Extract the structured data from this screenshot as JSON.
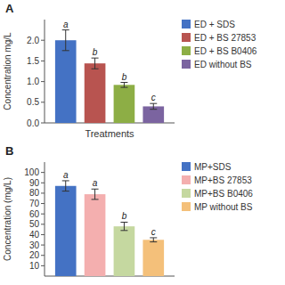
{
  "chart_data": [
    {
      "type": "bar",
      "title": "A",
      "xlabel": "Treatments",
      "ylabel": "Concentration mg/L",
      "categories": [
        null
      ],
      "series": [
        {
          "name": "ED + SDS",
          "color": "#4472C4",
          "values": [
            2.0
          ],
          "errors": [
            0.25
          ],
          "annotations": [
            "a"
          ]
        },
        {
          "name": "ED + BS 27853",
          "color": "#B85450",
          "values": [
            1.44
          ],
          "errors": [
            0.13
          ],
          "annotations": [
            "b"
          ]
        },
        {
          "name": "ED + BS B0406",
          "color": "#8DAE45",
          "values": [
            0.92
          ],
          "errors": [
            0.06
          ],
          "annotations": [
            "b"
          ]
        },
        {
          "name": "ED without BS",
          "color": "#7B64A0",
          "values": [
            0.4
          ],
          "errors": [
            0.07
          ],
          "annotations": [
            "c"
          ]
        }
      ],
      "ylim": [
        0,
        2.5
      ],
      "yticks": [
        {
          "value": 0.0,
          "label": "0.0"
        },
        0.5,
        {
          "value": 1.0,
          "label": "1.0"
        },
        1.5,
        {
          "value": 2.0,
          "label": "2.0"
        }
      ],
      "grid": false,
      "legend": "right",
      "tick_labels": "y"
    },
    {
      "type": "bar",
      "title": "B",
      "ylabel": "Concentration (mg/L)",
      "categories": [
        null
      ],
      "series": [
        {
          "name": "MP+SDS",
          "color": "#4472C4",
          "values": [
            87
          ],
          "errors": [
            5
          ],
          "annotations": [
            "a"
          ]
        },
        {
          "name": "MP+BS 27853",
          "color": "#F4AFAF",
          "values": [
            79
          ],
          "errors": [
            5
          ],
          "annotations": [
            "a"
          ]
        },
        {
          "name": "MP+BS B0406",
          "color": "#C5D8A0",
          "values": [
            48
          ],
          "errors": [
            4
          ],
          "annotations": [
            "b"
          ]
        },
        {
          "name": "MP without BS",
          "color": "#F4C07A",
          "values": [
            35
          ],
          "errors": [
            2
          ],
          "annotations": [
            "c"
          ]
        }
      ],
      "ylim": [
        0,
        110
      ],
      "yticks": [
        10,
        20,
        30,
        40,
        50,
        60,
        70,
        80,
        90,
        100
      ],
      "grid": false,
      "legend": "right",
      "tick_labels": "y"
    }
  ]
}
